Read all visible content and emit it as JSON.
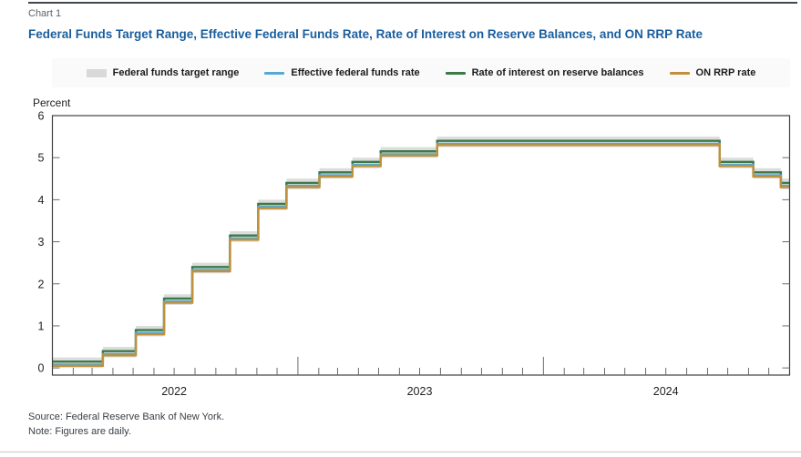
{
  "page": {
    "chart_label": "Chart 1",
    "title": "Federal Funds Target Range, Effective Federal Funds Rate, Rate of Interest on Reserve Balances, and ON RRP Rate",
    "source": "Source: Federal Reserve Bank of New York.",
    "note": "Note: Figures are daily."
  },
  "legend": {
    "items": [
      {
        "label": "Federal funds target range",
        "color": "#d9d9d9",
        "swatch": "band"
      },
      {
        "label": "Effective federal funds rate",
        "color": "#57a9d5",
        "swatch": "line"
      },
      {
        "label": "Rate of interest on reserve balances",
        "color": "#3a7a47",
        "swatch": "line"
      },
      {
        "label": "ON RRP rate",
        "color": "#c0913a",
        "swatch": "line"
      }
    ]
  },
  "chart_data": {
    "type": "line",
    "style": "step",
    "title": "Federal Funds Target Range, Effective Federal Funds Rate, Rate of Interest on Reserve Balances, and ON RRP Rate",
    "unit_label": "Percent",
    "ylim": [
      -0.17,
      6
    ],
    "yticks": [
      0,
      1,
      2,
      3,
      4,
      5,
      6
    ],
    "x_domain": [
      "2022-01-01",
      "2025-01-01"
    ],
    "year_labels": [
      "2022",
      "2023",
      "2024"
    ],
    "grid": "off",
    "legend_position": "top-center",
    "axis_color": "#3c4043",
    "tick_color": "#6b6b6b",
    "band": {
      "name": "Federal funds target range",
      "color": "#dcdcdc",
      "changes": [
        {
          "date": "2022-01-01",
          "lower": 0.0,
          "upper": 0.25
        },
        {
          "date": "2022-03-17",
          "lower": 0.25,
          "upper": 0.5
        },
        {
          "date": "2022-05-05",
          "lower": 0.75,
          "upper": 1.0
        },
        {
          "date": "2022-06-16",
          "lower": 1.5,
          "upper": 1.75
        },
        {
          "date": "2022-07-28",
          "lower": 2.25,
          "upper": 2.5
        },
        {
          "date": "2022-09-22",
          "lower": 3.0,
          "upper": 3.25
        },
        {
          "date": "2022-11-03",
          "lower": 3.75,
          "upper": 4.0
        },
        {
          "date": "2022-12-15",
          "lower": 4.25,
          "upper": 4.5
        },
        {
          "date": "2023-02-02",
          "lower": 4.5,
          "upper": 4.75
        },
        {
          "date": "2023-03-23",
          "lower": 4.75,
          "upper": 5.0
        },
        {
          "date": "2023-05-04",
          "lower": 5.0,
          "upper": 5.25
        },
        {
          "date": "2023-07-27",
          "lower": 5.25,
          "upper": 5.5
        },
        {
          "date": "2024-09-19",
          "lower": 4.75,
          "upper": 5.0
        },
        {
          "date": "2024-11-08",
          "lower": 4.5,
          "upper": 4.75
        },
        {
          "date": "2024-12-19",
          "lower": 4.25,
          "upper": 4.5
        }
      ]
    },
    "series": [
      {
        "name": "Rate of interest on reserve balances",
        "color": "#3a7a47",
        "changes": [
          {
            "date": "2022-01-01",
            "value": 0.15
          },
          {
            "date": "2022-03-17",
            "value": 0.4
          },
          {
            "date": "2022-05-05",
            "value": 0.9
          },
          {
            "date": "2022-06-16",
            "value": 1.65
          },
          {
            "date": "2022-07-28",
            "value": 2.4
          },
          {
            "date": "2022-09-22",
            "value": 3.15
          },
          {
            "date": "2022-11-03",
            "value": 3.9
          },
          {
            "date": "2022-12-15",
            "value": 4.4
          },
          {
            "date": "2023-02-02",
            "value": 4.65
          },
          {
            "date": "2023-03-23",
            "value": 4.9
          },
          {
            "date": "2023-05-04",
            "value": 5.15
          },
          {
            "date": "2023-07-27",
            "value": 5.4
          },
          {
            "date": "2024-09-19",
            "value": 4.9
          },
          {
            "date": "2024-11-08",
            "value": 4.65
          },
          {
            "date": "2024-12-19",
            "value": 4.4
          }
        ]
      },
      {
        "name": "Effective federal funds rate",
        "color": "#57a9d5",
        "changes": [
          {
            "date": "2022-01-01",
            "value": 0.08
          },
          {
            "date": "2022-03-17",
            "value": 0.33
          },
          {
            "date": "2022-05-05",
            "value": 0.83
          },
          {
            "date": "2022-06-16",
            "value": 1.58
          },
          {
            "date": "2022-07-28",
            "value": 2.33
          },
          {
            "date": "2022-09-22",
            "value": 3.08
          },
          {
            "date": "2022-11-03",
            "value": 3.83
          },
          {
            "date": "2022-12-15",
            "value": 4.33
          },
          {
            "date": "2023-02-02",
            "value": 4.58
          },
          {
            "date": "2023-03-23",
            "value": 4.83
          },
          {
            "date": "2023-05-04",
            "value": 5.08
          },
          {
            "date": "2023-07-27",
            "value": 5.33
          },
          {
            "date": "2024-09-19",
            "value": 4.83
          },
          {
            "date": "2024-11-08",
            "value": 4.58
          },
          {
            "date": "2024-12-19",
            "value": 4.33
          }
        ]
      },
      {
        "name": "ON RRP rate",
        "color": "#c0913a",
        "changes": [
          {
            "date": "2022-01-01",
            "value": 0.05
          },
          {
            "date": "2022-03-17",
            "value": 0.3
          },
          {
            "date": "2022-05-05",
            "value": 0.8
          },
          {
            "date": "2022-06-16",
            "value": 1.55
          },
          {
            "date": "2022-07-28",
            "value": 2.3
          },
          {
            "date": "2022-09-22",
            "value": 3.05
          },
          {
            "date": "2022-11-03",
            "value": 3.8
          },
          {
            "date": "2022-12-15",
            "value": 4.3
          },
          {
            "date": "2023-02-02",
            "value": 4.55
          },
          {
            "date": "2023-03-23",
            "value": 4.8
          },
          {
            "date": "2023-05-04",
            "value": 5.05
          },
          {
            "date": "2023-07-27",
            "value": 5.3
          },
          {
            "date": "2024-09-19",
            "value": 4.8
          },
          {
            "date": "2024-11-08",
            "value": 4.55
          },
          {
            "date": "2024-12-19",
            "value": 4.3
          }
        ]
      }
    ]
  }
}
